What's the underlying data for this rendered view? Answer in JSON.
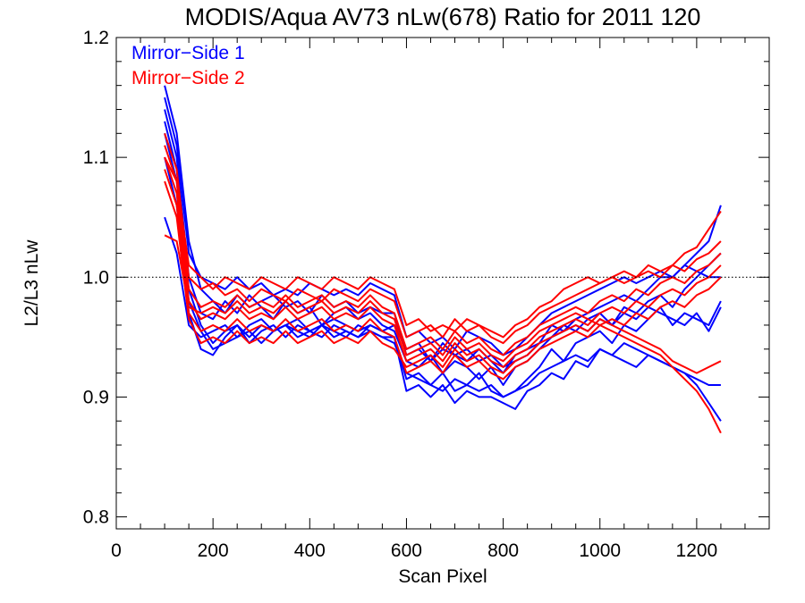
{
  "chart_data": {
    "type": "line",
    "title": "MODIS/Aqua AV73 nLw(678) Ratio for 2011 120",
    "xlabel": "Scan Pixel",
    "ylabel": "L2/L3 nLw",
    "xlim": [
      0,
      1350
    ],
    "ylim": [
      0.79,
      1.2
    ],
    "x_ticks": [
      "0",
      "200",
      "400",
      "600",
      "800",
      "1000",
      "1200"
    ],
    "y_ticks": [
      "0.8",
      "0.9",
      "1.0",
      "1.1",
      "1.2"
    ],
    "reference_line": 1.0,
    "grid": false,
    "legend": [
      {
        "label": "Mirror−Side 1",
        "color": "#0000ff"
      },
      {
        "label": "Mirror−Side 2",
        "color": "#ff0000"
      }
    ],
    "x": [
      100,
      125,
      150,
      175,
      200,
      225,
      250,
      275,
      300,
      325,
      350,
      375,
      400,
      425,
      450,
      475,
      500,
      525,
      550,
      575,
      600,
      625,
      650,
      675,
      700,
      725,
      750,
      775,
      800,
      825,
      850,
      875,
      900,
      925,
      950,
      975,
      1000,
      1025,
      1050,
      1075,
      1100,
      1125,
      1150,
      1175,
      1200,
      1225,
      1250
    ],
    "series": [
      {
        "name": "Mirror−Side 1",
        "color": "#0000ff",
        "values": [
          1.16,
          1.12,
          1.03,
          0.99,
          0.98,
          0.97,
          0.985,
          0.975,
          0.98,
          0.985,
          0.975,
          0.98,
          0.97,
          0.985,
          0.975,
          0.98,
          0.97,
          0.975,
          0.97,
          0.97,
          0.935,
          0.94,
          0.93,
          0.945,
          0.935,
          0.93,
          0.94,
          0.93,
          0.92,
          0.935,
          0.94,
          0.945,
          0.96,
          0.955,
          0.965,
          0.97,
          0.975,
          0.98,
          0.985,
          0.98,
          0.99,
          1.0,
          1.0,
          1.01,
          1.02,
          1.03,
          1.06
        ]
      },
      {
        "name": "Mirror−Side 1",
        "color": "#0000ff",
        "values": [
          1.14,
          1.1,
          1.0,
          0.97,
          0.965,
          0.98,
          0.97,
          0.985,
          0.975,
          0.965,
          0.98,
          0.97,
          0.975,
          0.96,
          0.97,
          0.975,
          0.965,
          0.97,
          0.96,
          0.955,
          0.93,
          0.925,
          0.935,
          0.92,
          0.93,
          0.925,
          0.915,
          0.925,
          0.91,
          0.925,
          0.93,
          0.94,
          0.95,
          0.96,
          0.955,
          0.965,
          0.97,
          0.96,
          0.975,
          0.97,
          0.98,
          0.985,
          0.975,
          0.99,
          1.0,
          1.01,
          1.02
        ]
      },
      {
        "name": "Mirror−Side 1",
        "color": "#0000ff",
        "values": [
          1.13,
          1.09,
          0.99,
          0.96,
          0.945,
          0.955,
          0.96,
          0.95,
          0.96,
          0.955,
          0.96,
          0.95,
          0.955,
          0.96,
          0.95,
          0.955,
          0.95,
          0.955,
          0.95,
          0.945,
          0.92,
          0.915,
          0.91,
          0.92,
          0.905,
          0.91,
          0.92,
          0.905,
          0.9,
          0.905,
          0.915,
          0.925,
          0.94,
          0.93,
          0.945,
          0.95,
          0.955,
          0.945,
          0.96,
          0.955,
          0.965,
          0.975,
          0.96,
          0.97,
          0.965,
          0.96,
          0.98
        ]
      },
      {
        "name": "Mirror−Side 1",
        "color": "#0000ff",
        "values": [
          1.12,
          1.08,
          0.98,
          0.955,
          0.94,
          0.945,
          0.95,
          0.955,
          0.945,
          0.955,
          0.96,
          0.955,
          0.95,
          0.96,
          0.955,
          0.95,
          0.96,
          0.955,
          0.95,
          0.95,
          0.905,
          0.91,
          0.9,
          0.91,
          0.895,
          0.905,
          0.9,
          0.9,
          0.895,
          0.89,
          0.905,
          0.91,
          0.92,
          0.915,
          0.93,
          0.925,
          0.94,
          0.935,
          0.93,
          0.925,
          0.935,
          0.93,
          0.925,
          0.92,
          0.915,
          0.91,
          0.91
        ]
      },
      {
        "name": "Mirror−Side 1",
        "color": "#0000ff",
        "values": [
          1.1,
          1.06,
          0.97,
          0.94,
          0.935,
          0.95,
          0.96,
          0.945,
          0.955,
          0.96,
          0.95,
          0.96,
          0.955,
          0.95,
          0.96,
          0.955,
          0.95,
          0.96,
          0.955,
          0.95,
          0.915,
          0.92,
          0.91,
          0.905,
          0.915,
          0.91,
          0.905,
          0.91,
          0.9,
          0.905,
          0.91,
          0.92,
          0.925,
          0.93,
          0.935,
          0.93,
          0.94,
          0.935,
          0.945,
          0.94,
          0.935,
          0.93,
          0.925,
          0.92,
          0.91,
          0.895,
          0.88
        ]
      },
      {
        "name": "Mirror−Side 1",
        "color": "#0000ff",
        "values": [
          1.15,
          1.11,
          1.02,
          1.0,
          0.995,
          0.99,
          1.0,
          0.99,
          0.995,
          0.985,
          0.99,
          0.985,
          0.995,
          0.99,
          0.985,
          0.99,
          0.985,
          0.995,
          0.99,
          0.985,
          0.95,
          0.955,
          0.945,
          0.95,
          0.94,
          0.955,
          0.95,
          0.945,
          0.935,
          0.94,
          0.95,
          0.96,
          0.97,
          0.975,
          0.98,
          0.985,
          0.99,
          0.995,
          1.0,
          0.995,
          1.0,
          1.005,
          1.0,
          1.01,
          1.005,
          1.0,
          1.0
        ]
      },
      {
        "name": "Mirror−Side 1",
        "color": "#0000ff",
        "values": [
          1.05,
          1.02,
          0.96,
          0.95,
          0.955,
          0.96,
          0.95,
          0.96,
          0.965,
          0.955,
          0.96,
          0.965,
          0.955,
          0.96,
          0.965,
          0.96,
          0.955,
          0.96,
          0.955,
          0.96,
          0.94,
          0.945,
          0.93,
          0.94,
          0.935,
          0.94,
          0.93,
          0.935,
          0.925,
          0.93,
          0.935,
          0.945,
          0.95,
          0.955,
          0.96,
          0.955,
          0.965,
          0.96,
          0.97,
          0.965,
          0.975,
          0.97,
          0.965,
          0.96,
          0.97,
          0.955,
          0.975
        ]
      },
      {
        "name": "Mirror−Side 2",
        "color": "#ff0000",
        "values": [
          1.12,
          1.09,
          1.0,
          0.99,
          0.995,
          0.985,
          0.99,
          0.98,
          0.99,
          0.985,
          0.98,
          0.99,
          0.985,
          0.98,
          0.99,
          0.985,
          0.98,
          0.99,
          0.985,
          0.98,
          0.95,
          0.955,
          0.96,
          0.95,
          0.965,
          0.955,
          0.96,
          0.95,
          0.945,
          0.955,
          0.96,
          0.97,
          0.975,
          0.98,
          0.985,
          0.99,
          0.995,
          1.0,
          0.995,
          1.0,
          1.005,
          1.0,
          1.01,
          1.005,
          1.015,
          1.02,
          1.03
        ]
      },
      {
        "name": "Mirror−Side 2",
        "color": "#ff0000",
        "values": [
          1.11,
          1.08,
          0.99,
          0.975,
          0.98,
          0.975,
          0.985,
          0.975,
          0.98,
          0.975,
          0.985,
          0.975,
          0.98,
          0.985,
          0.975,
          0.98,
          0.975,
          0.985,
          0.975,
          0.97,
          0.94,
          0.945,
          0.95,
          0.94,
          0.955,
          0.945,
          0.95,
          0.94,
          0.935,
          0.945,
          0.95,
          0.96,
          0.965,
          0.97,
          0.975,
          0.97,
          0.98,
          0.985,
          0.98,
          0.99,
          0.985,
          0.995,
          1.0,
          0.995,
          1.005,
          1.01,
          1.02
        ]
      },
      {
        "name": "Mirror−Side 2",
        "color": "#ff0000",
        "values": [
          1.1,
          1.07,
          0.98,
          0.965,
          0.97,
          0.965,
          0.975,
          0.965,
          0.97,
          0.965,
          0.975,
          0.965,
          0.97,
          0.975,
          0.965,
          0.97,
          0.965,
          0.975,
          0.965,
          0.96,
          0.93,
          0.935,
          0.94,
          0.93,
          0.945,
          0.935,
          0.94,
          0.93,
          0.925,
          0.935,
          0.94,
          0.95,
          0.955,
          0.96,
          0.965,
          0.96,
          0.97,
          0.975,
          0.97,
          0.98,
          0.975,
          0.985,
          0.99,
          0.985,
          0.995,
          1.0,
          1.01
        ]
      },
      {
        "name": "Mirror−Side 2",
        "color": "#ff0000",
        "values": [
          1.09,
          1.06,
          0.97,
          0.955,
          0.96,
          0.955,
          0.965,
          0.955,
          0.96,
          0.955,
          0.965,
          0.955,
          0.96,
          0.965,
          0.955,
          0.96,
          0.955,
          0.965,
          0.955,
          0.95,
          0.92,
          0.925,
          0.93,
          0.92,
          0.935,
          0.925,
          0.93,
          0.92,
          0.915,
          0.925,
          0.93,
          0.94,
          0.945,
          0.95,
          0.955,
          0.95,
          0.96,
          0.965,
          0.96,
          0.97,
          0.965,
          0.975,
          0.98,
          0.975,
          0.985,
          0.99,
          1.0
        ]
      },
      {
        "name": "Mirror−Side 2",
        "color": "#ff0000",
        "values": [
          1.08,
          1.05,
          0.965,
          0.945,
          0.95,
          0.945,
          0.955,
          0.945,
          0.95,
          0.945,
          0.955,
          0.945,
          0.95,
          0.955,
          0.945,
          0.95,
          0.945,
          0.955,
          0.945,
          0.94,
          0.925,
          0.93,
          0.935,
          0.925,
          0.94,
          0.93,
          0.935,
          0.925,
          0.92,
          0.93,
          0.935,
          0.945,
          0.95,
          0.955,
          0.96,
          0.955,
          0.965,
          0.96,
          0.955,
          0.95,
          0.945,
          0.94,
          0.93,
          0.925,
          0.92,
          0.925,
          0.93
        ]
      },
      {
        "name": "Mirror−Side 2",
        "color": "#ff0000",
        "values": [
          1.035,
          1.03,
          0.975,
          0.97,
          0.975,
          0.97,
          0.98,
          0.97,
          0.975,
          0.97,
          0.98,
          0.97,
          0.975,
          0.98,
          0.97,
          0.975,
          0.97,
          0.98,
          0.97,
          0.965,
          0.935,
          0.94,
          0.945,
          0.935,
          0.95,
          0.94,
          0.945,
          0.935,
          0.93,
          0.94,
          0.945,
          0.955,
          0.96,
          0.965,
          0.97,
          0.965,
          0.96,
          0.955,
          0.95,
          0.945,
          0.94,
          0.935,
          0.925,
          0.915,
          0.905,
          0.89,
          0.87
        ]
      },
      {
        "name": "Mirror−Side 2",
        "color": "#ff0000",
        "values": [
          1.1,
          1.08,
          1.01,
          1.0,
          0.99,
          1.0,
          0.995,
          0.99,
          1.0,
          0.995,
          0.99,
          1.0,
          0.995,
          0.99,
          1.0,
          0.995,
          0.99,
          1.0,
          0.995,
          0.99,
          0.96,
          0.965,
          0.955,
          0.96,
          0.955,
          0.965,
          0.96,
          0.955,
          0.95,
          0.96,
          0.965,
          0.975,
          0.98,
          0.99,
          0.995,
          1.0,
          0.995,
          1.0,
          1.005,
          1.0,
          1.01,
          1.005,
          1.01,
          1.02,
          1.025,
          1.04,
          1.055
        ]
      }
    ]
  }
}
